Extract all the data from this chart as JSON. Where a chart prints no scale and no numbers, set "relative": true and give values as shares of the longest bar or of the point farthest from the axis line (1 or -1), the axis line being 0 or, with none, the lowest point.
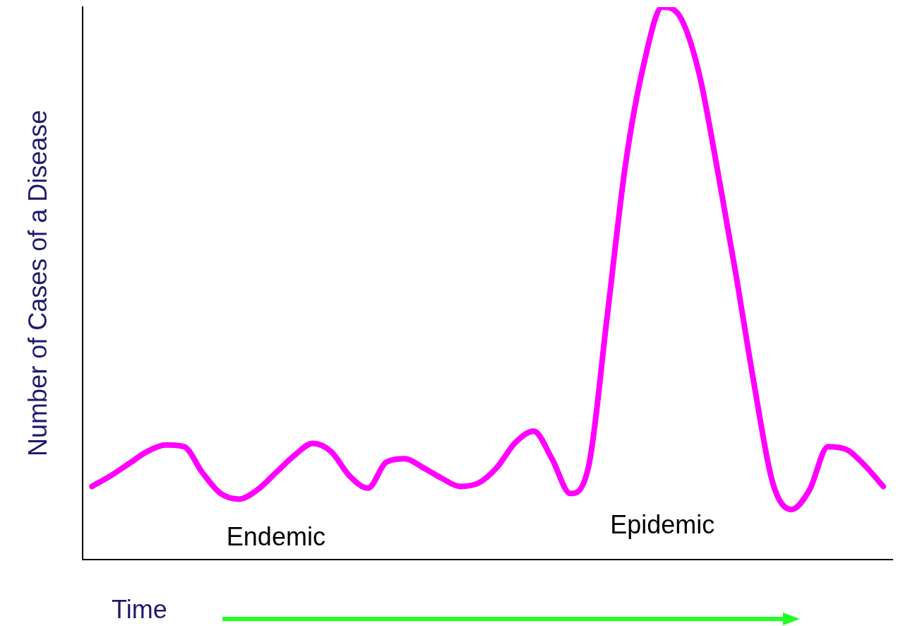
{
  "chart_data": {
    "type": "line",
    "relative": true,
    "ylabel": "Number of Cases of a Disease",
    "xlabel": "Time",
    "annotations": [
      "Endemic",
      "Epidemic"
    ],
    "categories": [
      null,
      null,
      null,
      null,
      null,
      null,
      null,
      null,
      null,
      null,
      null,
      null,
      null,
      null,
      null,
      null,
      null,
      null,
      null,
      null,
      null,
      null,
      null,
      null,
      null,
      null,
      null,
      null,
      null,
      null,
      null,
      null,
      null,
      null,
      null,
      null,
      null,
      null,
      null,
      null,
      null,
      null,
      null,
      null
    ],
    "series": [
      {
        "color": "#ff00ff",
        "values": [
          0.132,
          0.151,
          0.173,
          0.195,
          0.207,
          0.204,
          0.157,
          0.119,
          0.109,
          0.126,
          0.157,
          0.188,
          0.21,
          0.195,
          0.151,
          0.129,
          0.176,
          0.182,
          0.166,
          0.147,
          0.132,
          0.138,
          0.166,
          0.211,
          0.232,
          0.182,
          0.119,
          0.17,
          0.44,
          0.716,
          0.898,
          1.0,
          0.98,
          0.879,
          0.704,
          0.515,
          0.314,
          0.138,
          0.09,
          0.126,
          0.204,
          0.199,
          0.17,
          0.132
        ]
      }
    ],
    "grid": false,
    "legend": false,
    "marker": "none",
    "line_style": "solid"
  }
}
